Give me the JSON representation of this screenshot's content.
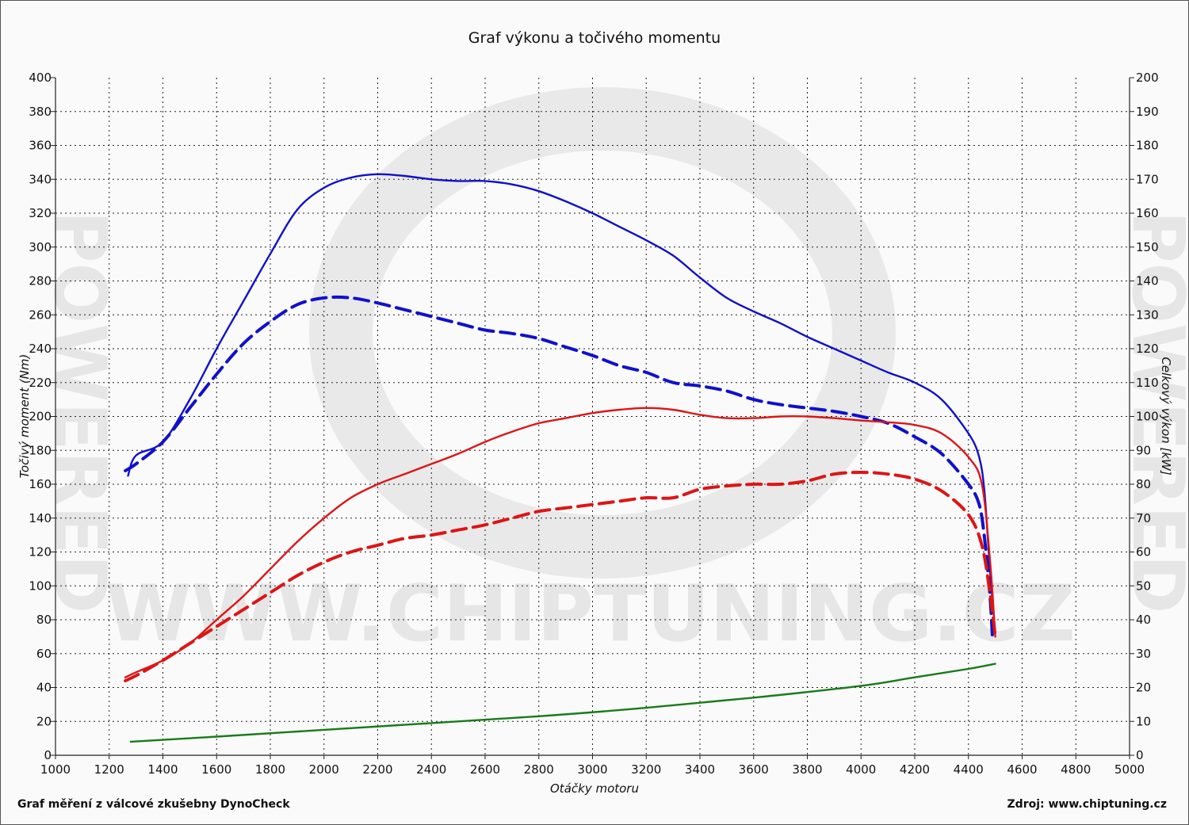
{
  "chart_data": {
    "type": "line",
    "title": "Graf výkonu a točivého momentu",
    "xlabel": "Otáčky motoru",
    "ylabel_left": "Točivý moment (Nm)",
    "ylabel_right": "Celkový výkon [kW]",
    "xlim": [
      1000,
      5000
    ],
    "ylim_left": [
      0,
      400
    ],
    "ylim_right": [
      0,
      200
    ],
    "x_ticks": [
      1000,
      1200,
      1400,
      1600,
      1800,
      2000,
      2200,
      2400,
      2600,
      2800,
      3000,
      3200,
      3400,
      3600,
      3800,
      4000,
      4200,
      4400,
      4600,
      4800,
      5000
    ],
    "y_ticks_left": [
      0,
      20,
      40,
      60,
      80,
      100,
      120,
      140,
      160,
      180,
      200,
      220,
      240,
      260,
      280,
      300,
      320,
      340,
      360,
      380,
      400
    ],
    "y_ticks_right": [
      0,
      10,
      20,
      30,
      40,
      50,
      60,
      70,
      80,
      90,
      100,
      110,
      120,
      130,
      140,
      150,
      160,
      170,
      180,
      190,
      200
    ],
    "grid": true,
    "series": [
      {
        "color": "#1010cc",
        "style": "solid",
        "axis": "left",
        "x": [
          1270,
          1300,
          1400,
          1500,
          1600,
          1700,
          1800,
          1900,
          2000,
          2100,
          2200,
          2300,
          2400,
          2500,
          2600,
          2700,
          2800,
          2900,
          3000,
          3100,
          3200,
          3300,
          3400,
          3500,
          3600,
          3700,
          3800,
          3900,
          4000,
          4100,
          4200,
          4300,
          4400,
          4440,
          4460,
          4480,
          4500
        ],
        "y": [
          165,
          177,
          185,
          210,
          240,
          268,
          296,
          322,
          335,
          341,
          343,
          342,
          340,
          339,
          339,
          337,
          333,
          327,
          320,
          312,
          304,
          295,
          282,
          270,
          262,
          255,
          247,
          240,
          233,
          226,
          220,
          210,
          190,
          176,
          155,
          110,
          72
        ]
      },
      {
        "color": "#1010cc",
        "style": "dashed",
        "axis": "left",
        "x": [
          1260,
          1300,
          1400,
          1500,
          1600,
          1700,
          1800,
          1900,
          2000,
          2100,
          2200,
          2300,
          2400,
          2500,
          2600,
          2700,
          2800,
          2900,
          3000,
          3100,
          3200,
          3300,
          3400,
          3500,
          3600,
          3700,
          3800,
          3900,
          4000,
          4100,
          4200,
          4300,
          4400,
          4440,
          4460,
          4480,
          4490
        ],
        "y": [
          168,
          172,
          185,
          205,
          225,
          243,
          256,
          266,
          270,
          270,
          267,
          263,
          259,
          255,
          251,
          249,
          246,
          241,
          236,
          230,
          226,
          220,
          218,
          215,
          210,
          207,
          205,
          203,
          200,
          196,
          188,
          178,
          160,
          148,
          128,
          95,
          68
        ]
      },
      {
        "color": "#dd1515",
        "style": "solid",
        "axis": "right",
        "x": [
          1260,
          1300,
          1400,
          1500,
          1600,
          1700,
          1800,
          1900,
          2000,
          2100,
          2200,
          2300,
          2400,
          2500,
          2600,
          2700,
          2800,
          2900,
          3000,
          3100,
          3200,
          3300,
          3400,
          3500,
          3600,
          3700,
          3800,
          3900,
          4000,
          4100,
          4200,
          4300,
          4400,
          4450,
          4480,
          4500
        ],
        "y": [
          23,
          24.5,
          28,
          33,
          40,
          47,
          55,
          63,
          70,
          76,
          80,
          83,
          86,
          89,
          92.5,
          95.5,
          98,
          99.5,
          101,
          102,
          102.5,
          102,
          100.5,
          99.5,
          99.5,
          100,
          100,
          99.5,
          98.8,
          98.3,
          97.5,
          95,
          88,
          80,
          58,
          35
        ]
      },
      {
        "color": "#dd1515",
        "style": "dashed",
        "axis": "right",
        "x": [
          1260,
          1300,
          1400,
          1500,
          1600,
          1700,
          1800,
          1900,
          2000,
          2100,
          2200,
          2300,
          2400,
          2500,
          2600,
          2700,
          2800,
          2900,
          3000,
          3100,
          3200,
          3300,
          3400,
          3500,
          3600,
          3700,
          3800,
          3900,
          4000,
          4100,
          4200,
          4300,
          4400,
          4450,
          4480,
          4500
        ],
        "y": [
          22,
          23.5,
          28,
          33,
          38,
          43,
          48,
          53,
          57,
          60,
          62,
          64,
          65,
          66.5,
          68,
          70,
          72,
          73,
          74,
          75,
          76,
          76,
          78.5,
          79.5,
          80,
          80,
          81,
          83,
          83.5,
          83,
          81.5,
          78,
          71,
          62,
          48,
          35
        ]
      },
      {
        "color": "#1a7a1a",
        "style": "solid",
        "axis": "right",
        "x": [
          1280,
          1600,
          2000,
          2400,
          2800,
          3200,
          3600,
          4000,
          4200,
          4400,
          4500
        ],
        "y": [
          4,
          5.5,
          7.5,
          9.5,
          11.5,
          14,
          17,
          20.5,
          23,
          25.5,
          27
        ]
      }
    ]
  },
  "footer": {
    "left": "Graf měření z válcové zkušebny DynoCheck",
    "right": "Zdroj: www.chiptuning.cz"
  },
  "watermark": {
    "url": "WWW.CHIPTUNING.CZ",
    "side": "POWERED"
  }
}
